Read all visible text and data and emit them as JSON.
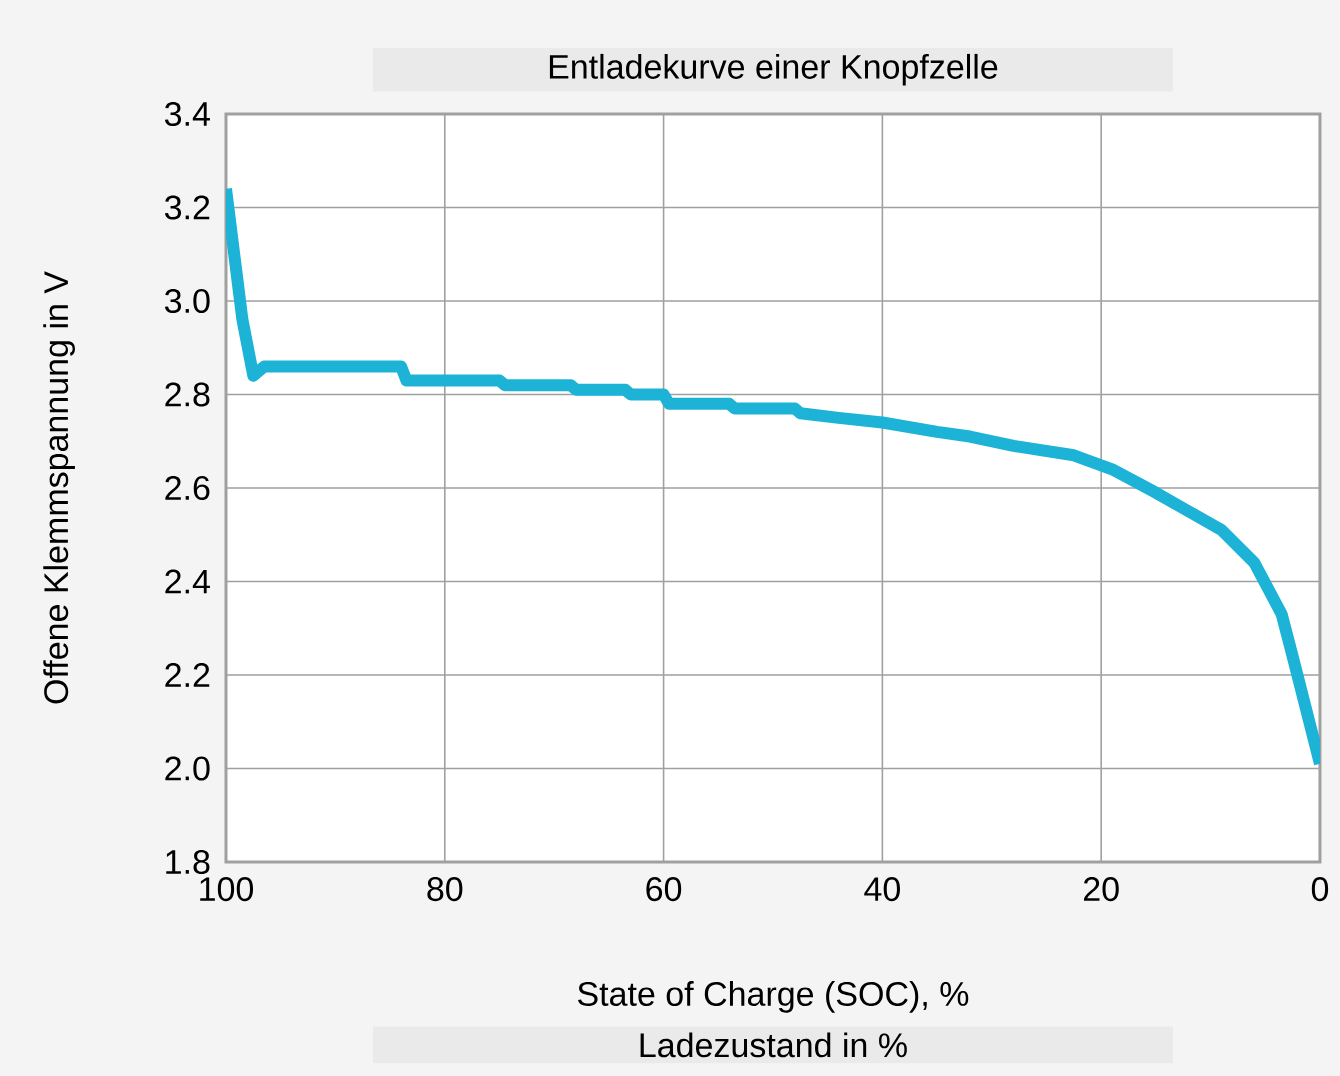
{
  "chart_data": {
    "type": "line",
    "title": "Entladekurve einer Knopfzelle",
    "xlabel": "Ladezustand in %",
    "ylabel": "Offene Klemmspannung in V",
    "annotations": [
      "State of Charge (SOC), %"
    ],
    "x": [
      100,
      98.5,
      97.5,
      96.5,
      84,
      83.5,
      75,
      74.5,
      68.5,
      68,
      63.5,
      63,
      60,
      59.5,
      54,
      53.5,
      48,
      47.5,
      44,
      40,
      35,
      32,
      28,
      22.5,
      19,
      15,
      12,
      9,
      6,
      3.5,
      2.5,
      0
    ],
    "series": [
      {
        "color": "#1cb3d6",
        "values": [
          3.24,
          2.96,
          2.84,
          2.86,
          2.86,
          2.83,
          2.83,
          2.82,
          2.82,
          2.81,
          2.81,
          2.8,
          2.8,
          2.78,
          2.78,
          2.77,
          2.77,
          2.76,
          2.75,
          2.74,
          2.72,
          2.71,
          2.69,
          2.67,
          2.64,
          2.59,
          2.55,
          2.51,
          2.44,
          2.33,
          2.24,
          2.01
        ]
      }
    ],
    "xlim": [
      100,
      0
    ],
    "xticks": [
      100,
      80,
      60,
      40,
      20,
      0
    ],
    "ylim": [
      1.8,
      3.4
    ],
    "yticks": [
      1.8,
      {
        "value": 2,
        "label": "2.0"
      },
      2.2,
      2.4,
      2.6,
      2.8,
      {
        "value": 3,
        "label": "3.0"
      },
      3.2,
      3.4
    ],
    "grid": true,
    "marker": "none",
    "line_style": "solid"
  }
}
